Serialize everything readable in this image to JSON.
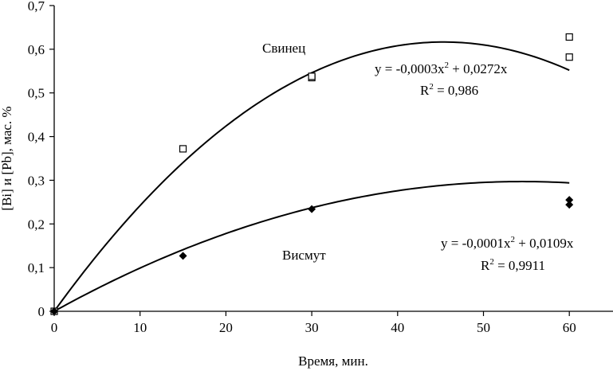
{
  "chart_data": {
    "type": "scatter",
    "xlabel": "Время, мин.",
    "ylabel": "[Bi] и [Pb], мас. %",
    "xlim": [
      0,
      65
    ],
    "ylim": [
      0,
      0.7
    ],
    "x_ticks": [
      0,
      10,
      20,
      30,
      40,
      50,
      60
    ],
    "y_ticks": [
      0,
      0.1,
      0.2,
      0.3,
      0.4,
      0.5,
      0.6,
      0.7
    ],
    "x_tick_labels": [
      "0",
      "10",
      "20",
      "30",
      "40",
      "50",
      "60"
    ],
    "y_tick_labels": [
      "0",
      "0,1",
      "0,2",
      "0,3",
      "0,4",
      "0,5",
      "0,6",
      "0,7"
    ],
    "grid": false,
    "series": [
      {
        "name": "Свинец",
        "marker": "open-square",
        "color": "#000000",
        "points": [
          [
            0,
            0
          ],
          [
            15,
            0.372
          ],
          [
            30,
            0.535
          ],
          [
            30,
            0.538
          ],
          [
            60,
            0.628
          ],
          [
            60,
            0.582
          ]
        ],
        "fit": {
          "a": -0.0003,
          "b": 0.0272
        },
        "equation_lead": "y = -0,0003x",
        "equation_exp": "2",
        "equation_tail": " + 0,0272x",
        "r2_lead": "R",
        "r2_exp": "2",
        "r2_tail": " = 0,986"
      },
      {
        "name": "Висмут",
        "marker": "filled-diamond",
        "color": "#000000",
        "points": [
          [
            0,
            0
          ],
          [
            15,
            0.127
          ],
          [
            30,
            0.234
          ],
          [
            60,
            0.255
          ],
          [
            60,
            0.244
          ]
        ],
        "fit": {
          "a": -0.0001,
          "b": 0.0109
        },
        "equation_lead": "y = -0,0001x",
        "equation_exp": "2",
        "equation_tail": " + 0,0109x",
        "r2_lead": "R",
        "r2_exp": "2",
        "r2_tail": " = 0,9911"
      }
    ]
  }
}
